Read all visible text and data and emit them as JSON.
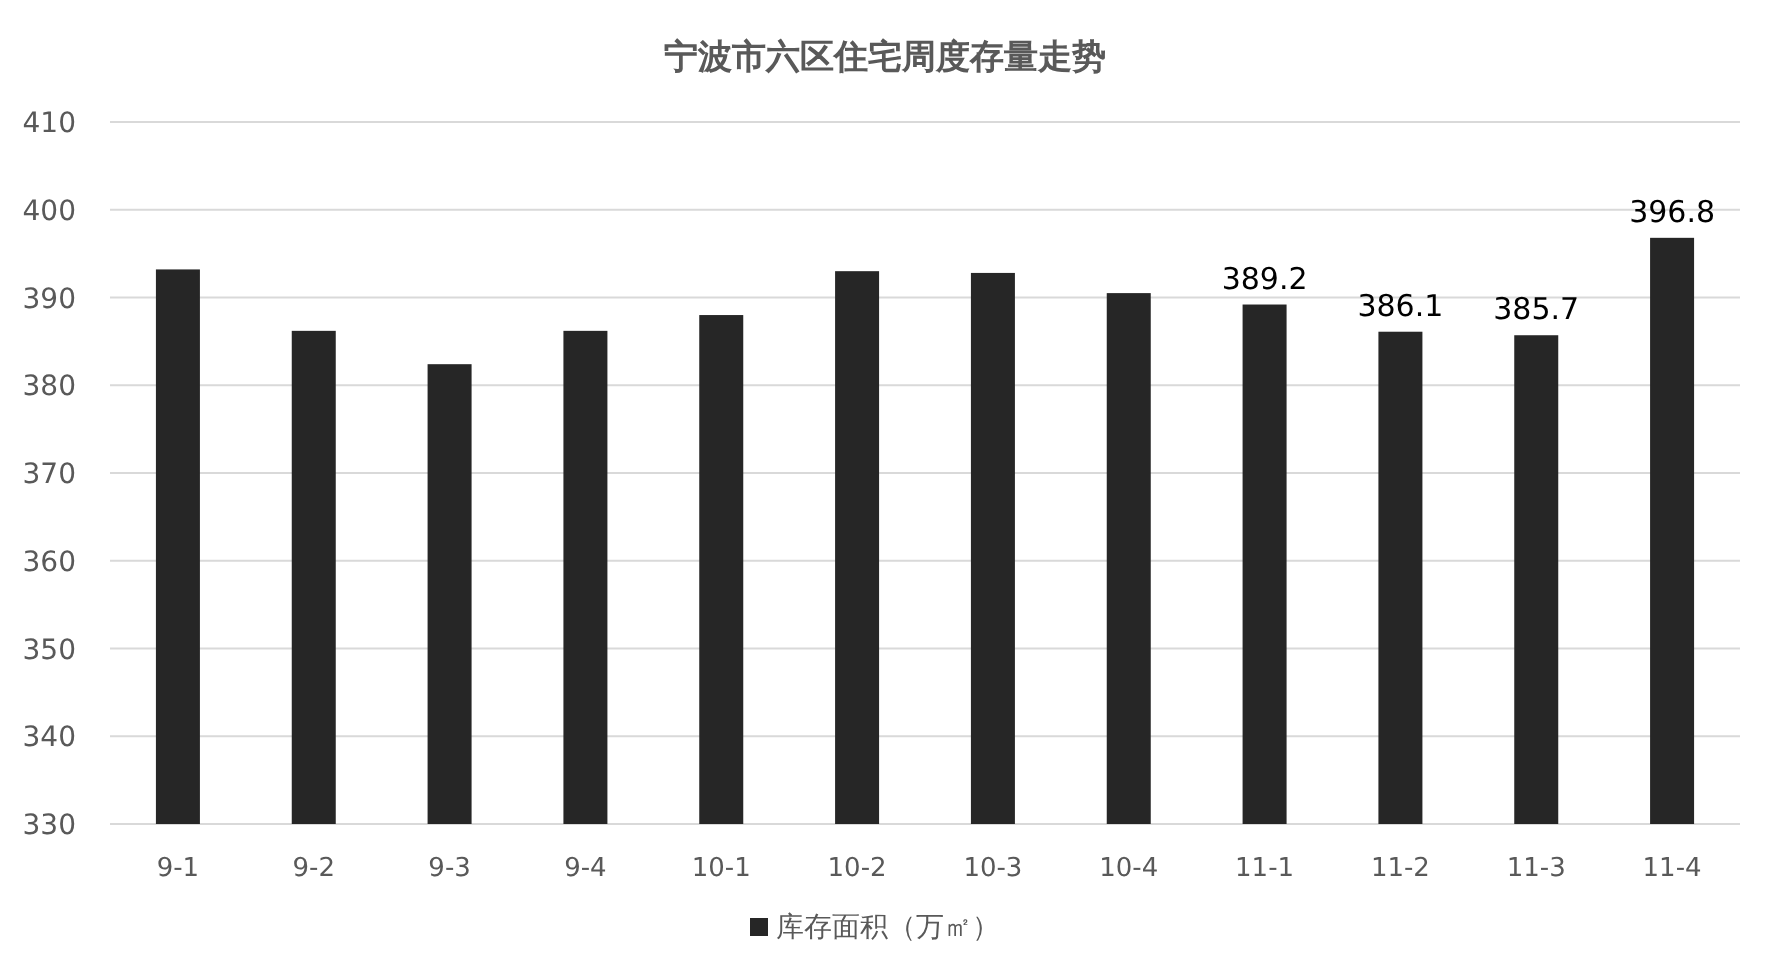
{
  "chart_data": {
    "type": "bar",
    "title": "宁波市六区住宅周度存量走势",
    "categories": [
      "9-1",
      "9-2",
      "9-3",
      "9-4",
      "10-1",
      "10-2",
      "10-3",
      "10-4",
      "11-1",
      "11-2",
      "11-3",
      "11-4"
    ],
    "series": [
      {
        "name": "库存面积（万㎡）",
        "color": "#262626",
        "values": [
          393.2,
          386.2,
          382.4,
          386.2,
          388.0,
          393.0,
          392.8,
          390.5,
          389.2,
          386.1,
          385.7,
          396.8
        ],
        "value_labels": [
          null,
          null,
          null,
          null,
          null,
          null,
          null,
          null,
          "389.2",
          "386.1",
          "385.7",
          "396.8"
        ]
      }
    ],
    "ylim": [
      330,
      410
    ],
    "yticks": [
      330,
      340,
      350,
      360,
      370,
      380,
      390,
      400,
      410
    ],
    "grid": "y",
    "legend": "bottom"
  }
}
